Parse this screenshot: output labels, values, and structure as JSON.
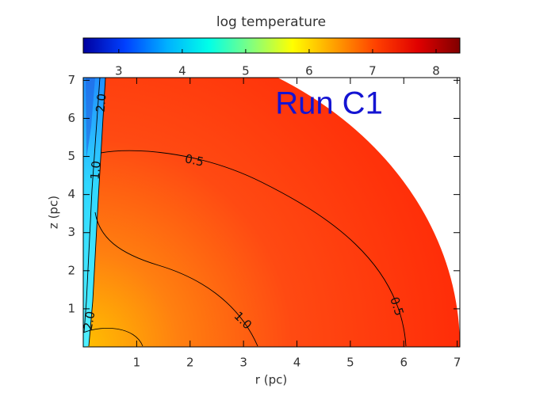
{
  "chart_data": {
    "type": "heatmap",
    "title": "log temperature",
    "annotation": "Run C1",
    "xlabel": "r (pc)",
    "ylabel": "z (pc)",
    "xlim": [
      0,
      7.05
    ],
    "ylim": [
      0,
      7.07
    ],
    "xticks": [
      1,
      2,
      3,
      4,
      5,
      6,
      7
    ],
    "yticks": [
      1,
      2,
      3,
      4,
      5,
      6,
      7
    ],
    "colorbar": {
      "lim": [
        2.44,
        8.375
      ],
      "ticks": [
        3,
        4,
        5,
        6,
        7,
        8
      ],
      "colormap": [
        "#0000a0",
        "#0040ff",
        "#00b0ff",
        "#00ffe8",
        "#80ff80",
        "#ffff00",
        "#ffa000",
        "#ff4000",
        "#e00000",
        "#800000"
      ]
    },
    "contours": [
      {
        "level": 0.5,
        "label": "0.5"
      },
      {
        "level": 1,
        "label": "1.0"
      },
      {
        "level": 2,
        "label": "2.0"
      }
    ]
  }
}
